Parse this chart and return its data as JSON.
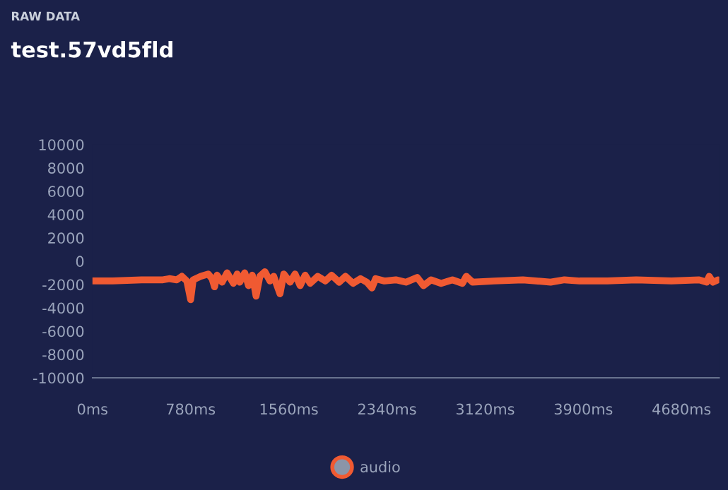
{
  "chart_data": {
    "type": "line",
    "subtitle": "RAW DATA",
    "title": "test.57vd5fld",
    "x": [
      0,
      160,
      390,
      560,
      610,
      670,
      710,
      750,
      780,
      800,
      860,
      920,
      950,
      970,
      990,
      1030,
      1070,
      1120,
      1150,
      1170,
      1210,
      1240,
      1270,
      1300,
      1330,
      1370,
      1410,
      1440,
      1490,
      1520,
      1570,
      1610,
      1650,
      1690,
      1730,
      1790,
      1850,
      1900,
      1960,
      2010,
      2070,
      2130,
      2180,
      2220,
      2250,
      2320,
      2410,
      2490,
      2580,
      2630,
      2690,
      2770,
      2860,
      2940,
      2970,
      3020,
      3190,
      3420,
      3640,
      3750,
      3870,
      4090,
      4320,
      4600,
      4820,
      4880,
      4900,
      4930,
      4970
    ],
    "series": [
      {
        "name": "audio",
        "color": "#f05a32",
        "values": [
          -1700,
          -1700,
          -1600,
          -1600,
          -1500,
          -1600,
          -1300,
          -1700,
          -3300,
          -1600,
          -1300,
          -1100,
          -1500,
          -2200,
          -1200,
          -1800,
          -1000,
          -1900,
          -1100,
          -1800,
          -1000,
          -2100,
          -1200,
          -3000,
          -1300,
          -900,
          -1700,
          -1300,
          -2800,
          -1100,
          -1800,
          -1100,
          -2100,
          -1200,
          -1900,
          -1300,
          -1700,
          -1200,
          -1800,
          -1300,
          -1900,
          -1500,
          -1800,
          -2300,
          -1500,
          -1700,
          -1600,
          -1800,
          -1400,
          -2100,
          -1600,
          -1900,
          -1600,
          -1900,
          -1300,
          -1800,
          -1700,
          -1600,
          -1800,
          -1600,
          -1700,
          -1700,
          -1600,
          -1700,
          -1600,
          -1800,
          -1300,
          -1800,
          -1600
        ]
      }
    ],
    "xlim": [
      0,
      4980
    ],
    "ylim": [
      -10000,
      10000
    ],
    "xticks": [
      {
        "value": 0,
        "label": "0ms"
      },
      {
        "value": 780,
        "label": "780ms"
      },
      {
        "value": 1560,
        "label": "1560ms"
      },
      {
        "value": 2340,
        "label": "2340ms"
      },
      {
        "value": 3120,
        "label": "3120ms"
      },
      {
        "value": 3900,
        "label": "3900ms"
      },
      {
        "value": 4680,
        "label": "4680ms"
      }
    ],
    "yticks": [
      -10000,
      -8000,
      -6000,
      -4000,
      -2000,
      0,
      2000,
      4000,
      6000,
      8000,
      10000
    ],
    "grid": false,
    "legend": "bottom",
    "marker": "none",
    "line_style": "solid"
  }
}
